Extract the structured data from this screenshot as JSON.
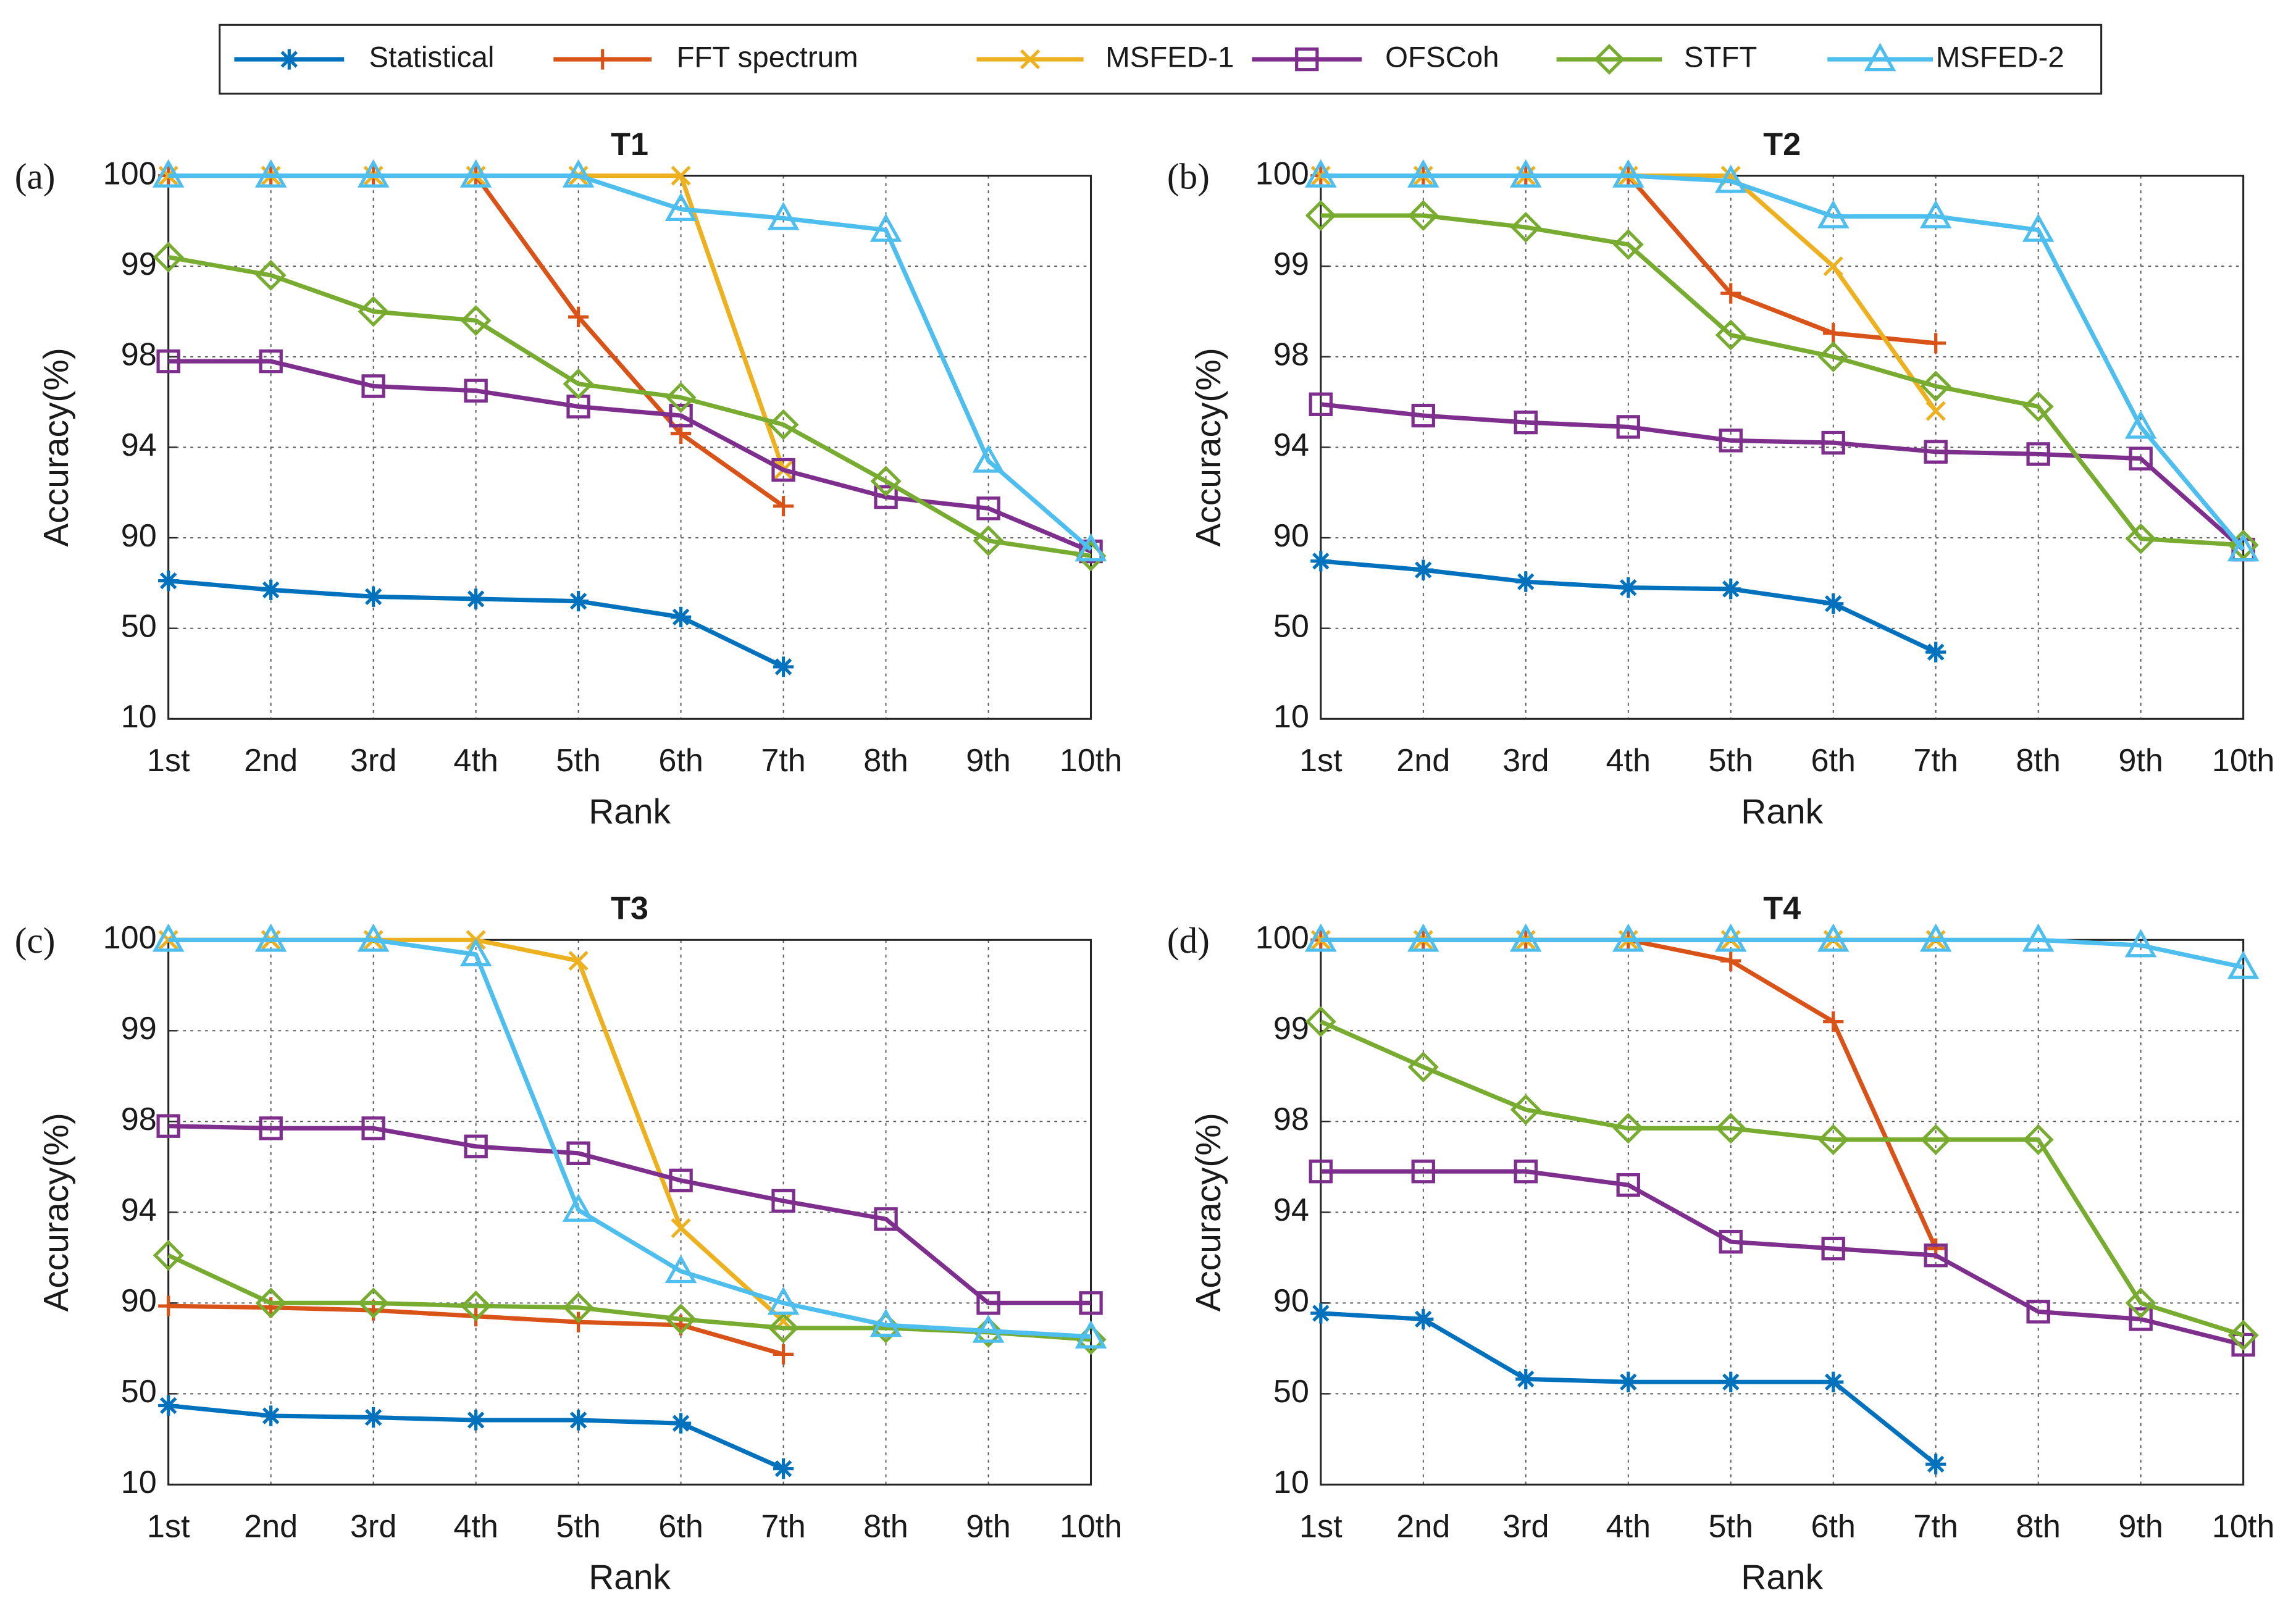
{
  "legend": [
    {
      "name": "Statistical",
      "color": "#0072BD",
      "marker": "asterisk"
    },
    {
      "name": "FFT spectrum",
      "color": "#D95319",
      "marker": "plus"
    },
    {
      "name": "MSFED-1",
      "color": "#EDB120",
      "marker": "x"
    },
    {
      "name": "OFSCoh",
      "color": "#7E2F8E",
      "marker": "square"
    },
    {
      "name": "STFT",
      "color": "#77AC30",
      "marker": "diamond"
    },
    {
      "name": "MSFED-2",
      "color": "#4DBEEE",
      "marker": "triangle"
    }
  ],
  "chart_data": [
    {
      "type": "line",
      "panel": "(a)",
      "title": "T1",
      "x_label": "Rank",
      "y_label": "Accuracy(%)",
      "categories": [
        "1st",
        "2nd",
        "3rd",
        "4th",
        "5th",
        "6th",
        "7th",
        "8th",
        "9th",
        "10th"
      ],
      "ylim": [
        10,
        100
      ],
      "yticks": [
        10,
        50,
        90,
        94,
        98,
        99,
        100
      ],
      "yscale": "segmented",
      "grid": true,
      "series": [
        {
          "values": [
            71,
            67,
            64,
            63,
            62,
            55,
            33,
            null,
            null,
            null
          ]
        },
        {
          "values": [
            100,
            100,
            100,
            100,
            98.44,
            94.6,
            91.4,
            null,
            null,
            null
          ]
        },
        {
          "values": [
            100,
            100,
            100,
            100,
            100,
            100,
            93,
            null,
            null,
            null
          ]
        },
        {
          "values": [
            97.8,
            97.8,
            96.7,
            96.5,
            95.8,
            95.4,
            93,
            91.8,
            91.3,
            84
          ]
        },
        {
          "values": [
            99.1,
            98.9,
            98.5,
            98.4,
            96.8,
            96.2,
            95,
            92.5,
            88.7,
            82
          ]
        },
        {
          "values": [
            100,
            100,
            100,
            100,
            100,
            99.63,
            99.53,
            99.4,
            93.4,
            84.8
          ]
        }
      ]
    },
    {
      "type": "line",
      "panel": "(b)",
      "title": "T2",
      "x_label": "Rank",
      "y_label": "Accuracy(%)",
      "categories": [
        "1st",
        "2nd",
        "3rd",
        "4th",
        "5th",
        "6th",
        "7th",
        "8th",
        "9th",
        "10th"
      ],
      "ylim": [
        10,
        100
      ],
      "yticks": [
        10,
        50,
        90,
        94,
        98,
        99,
        100
      ],
      "yscale": "segmented",
      "grid": true,
      "series": [
        {
          "values": [
            79.7,
            75.8,
            70.6,
            68,
            67.4,
            60.9,
            39.5,
            null,
            null,
            null
          ]
        },
        {
          "values": [
            100,
            100,
            100,
            100,
            98.7,
            98.26,
            98.15,
            null,
            null,
            null
          ]
        },
        {
          "values": [
            100,
            100,
            100,
            100,
            100,
            99,
            95.6,
            null,
            null,
            null
          ]
        },
        {
          "values": [
            95.9,
            95.4,
            95.1,
            94.9,
            94.3,
            94.2,
            93.8,
            93.7,
            93.5,
            84.8
          ]
        },
        {
          "values": [
            99.56,
            99.56,
            99.43,
            99.24,
            98.24,
            98,
            96.7,
            95.8,
            89.6,
            86.8
          ]
        },
        {
          "values": [
            100,
            100,
            100,
            100,
            99.94,
            99.55,
            99.55,
            99.4,
            94.9,
            84.8
          ]
        }
      ]
    },
    {
      "type": "line",
      "panel": "(c)",
      "title": "T3",
      "x_label": "Rank",
      "y_label": "Accuracy(%)",
      "categories": [
        "1st",
        "2nd",
        "3rd",
        "4th",
        "5th",
        "6th",
        "7th",
        "8th",
        "9th",
        "10th"
      ],
      "ylim": [
        10,
        100
      ],
      "yticks": [
        10,
        50,
        90,
        94,
        98,
        99,
        100
      ],
      "yscale": "segmented",
      "grid": true,
      "series": [
        {
          "values": [
            44.8,
            40.3,
            39.6,
            38.4,
            38.4,
            37,
            17,
            null,
            null,
            null
          ]
        },
        {
          "values": [
            88.7,
            88,
            86.8,
            84.2,
            81.6,
            80.3,
            67.4,
            null,
            null,
            null
          ]
        },
        {
          "values": [
            100,
            100,
            100,
            100,
            99.77,
            93.3,
            82,
            null,
            null,
            null
          ]
        },
        {
          "values": [
            97.8,
            97.7,
            97.7,
            96.9,
            96.6,
            95.4,
            94.5,
            93.7,
            90,
            90
          ]
        },
        {
          "values": [
            92.1,
            90,
            90,
            88.7,
            88,
            82.9,
            79,
            79,
            77.1,
            73.9
          ]
        },
        {
          "values": [
            100,
            100,
            100,
            99.84,
            94.1,
            91.4,
            90,
            80.3,
            77.7,
            75.2
          ]
        }
      ]
    },
    {
      "type": "line",
      "panel": "(d)",
      "title": "T4",
      "x_label": "Rank",
      "y_label": "Accuracy(%)",
      "categories": [
        "1st",
        "2nd",
        "3rd",
        "4th",
        "5th",
        "6th",
        "7th",
        "8th",
        "9th",
        "10th"
      ],
      "ylim": [
        10,
        100
      ],
      "yticks": [
        10,
        50,
        90,
        94,
        98,
        99,
        100
      ],
      "yscale": "segmented",
      "grid": true,
      "series": [
        {
          "values": [
            85.5,
            82.9,
            56.5,
            55.2,
            55.2,
            55.2,
            19,
            null,
            null,
            null
          ]
        },
        {
          "values": [
            100,
            100,
            100,
            100,
            99.77,
            99.1,
            92.4,
            null,
            null,
            null
          ]
        },
        {
          "values": [
            100,
            100,
            100,
            100,
            100,
            100,
            100,
            null,
            null,
            null
          ]
        },
        {
          "values": [
            95.8,
            95.8,
            95.8,
            95.2,
            92.7,
            92.4,
            92.1,
            86.2,
            82.9,
            71.6
          ]
        },
        {
          "values": [
            99.1,
            98.6,
            98.13,
            97.7,
            97.7,
            97.2,
            97.2,
            97.2,
            90,
            75.8
          ]
        },
        {
          "values": [
            100,
            100,
            100,
            100,
            100,
            100,
            100,
            100,
            99.94,
            99.7
          ]
        }
      ]
    }
  ]
}
